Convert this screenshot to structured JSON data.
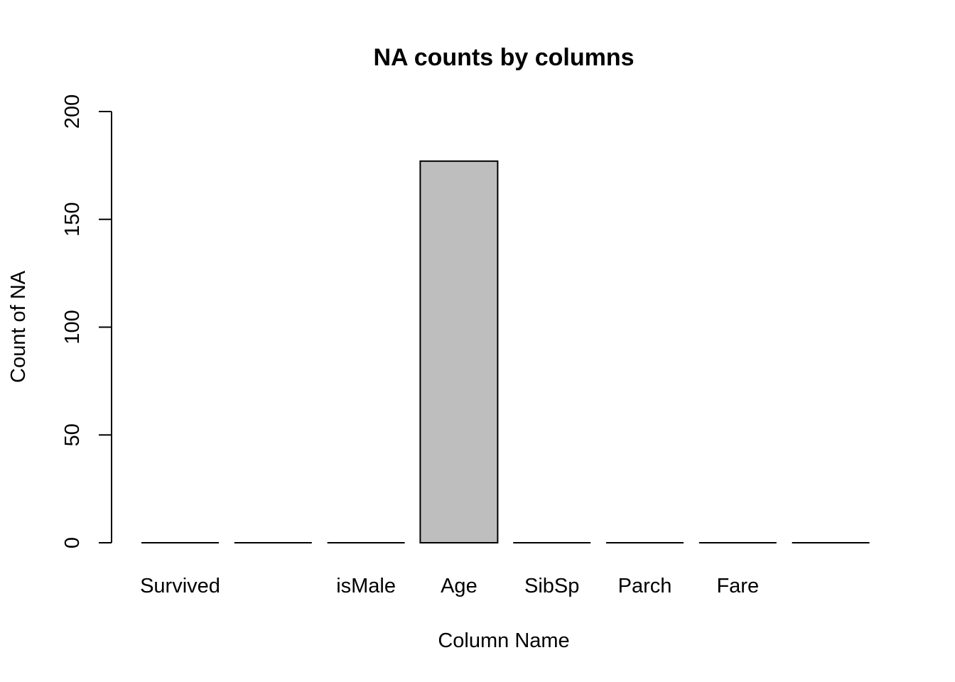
{
  "chart_data": {
    "type": "bar",
    "title": "NA counts by columns",
    "xlabel": "Column Name",
    "ylabel": "Count of NA",
    "categories": [
      "Survived",
      "",
      "isMale",
      "Age",
      "SibSp",
      "Parch",
      "Fare",
      ""
    ],
    "values": [
      0,
      0,
      0,
      177,
      0,
      0,
      0,
      0
    ],
    "ylim": [
      0,
      200
    ],
    "yticks": [
      "0",
      "50",
      "100",
      "150",
      "200"
    ],
    "bar_color": "#bebebe",
    "bar_stroke": "#000000",
    "grid": false,
    "legend": "none"
  }
}
